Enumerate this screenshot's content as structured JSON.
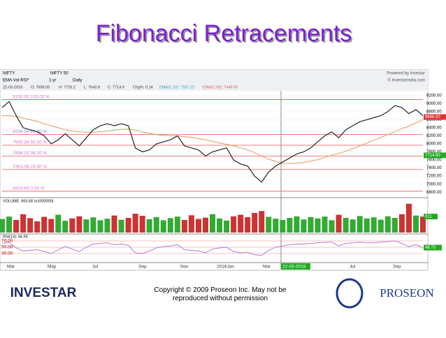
{
  "slide_title": "Fibonacci Retracements",
  "toolbar": {
    "symbol": "NIFTY",
    "index": "NIFTY 50",
    "powered": "Powered by Investar",
    "study": "EMA-Vol-RSI*",
    "period": "1-yr",
    "interval": "Daily",
    "site": "© InvestarIndia.com"
  },
  "info": [
    "22-03-2016",
    "O: 7699.55",
    "H: 7726.2",
    "L: 7643.8",
    "C: 7714.9",
    "Chg%: 0.14",
    "EMA(C,10): 7557.22",
    "EMA(C,50): 7448.55"
  ],
  "price_pane": {
    "ylim": [
      6700,
      9300
    ],
    "yticks": [
      {
        "value": 9200,
        "label": "9200.00"
      },
      {
        "value": 9000,
        "label": "9000.00"
      },
      {
        "value": 8800,
        "label": "8800.00"
      },
      {
        "value": 8600,
        "label": "8600.00"
      },
      {
        "value": 8400,
        "label": "8400.00"
      },
      {
        "value": 8200,
        "label": "8200.00"
      },
      {
        "value": 8000,
        "label": "8000.00"
      },
      {
        "value": 7800,
        "label": "7800.00"
      },
      {
        "value": 7600,
        "label": "7600.00"
      },
      {
        "value": 7400,
        "label": "7400.00"
      },
      {
        "value": 7200,
        "label": "7200.00"
      },
      {
        "value": 7000,
        "label": "7000.00"
      },
      {
        "value": 6800,
        "label": "6800.00"
      }
    ],
    "fib_levels": [
      {
        "value": 9100,
        "label": "9100.00 100.00 %"
      },
      {
        "value": 8234.54,
        "label": "8234.54 61.80 %"
      },
      {
        "value": 7965.34,
        "label": "7965.34 50.00 %"
      },
      {
        "value": 7696.15,
        "label": "7696.15 38.20 %"
      },
      {
        "value": 7363.08,
        "label": "7363.08 23.60 %"
      },
      {
        "value": 6824.69,
        "label": "6824.69 0.00 %"
      }
    ],
    "markers": [
      {
        "value": 8666,
        "label": "8666.00",
        "color": "#d33"
      },
      {
        "value": 7714.9,
        "label": "7714.90",
        "color": "#2a2"
      }
    ],
    "price": {
      "color": "#222",
      "values": [
        8900,
        9050,
        8700,
        8400,
        8350,
        8300,
        8200,
        8000,
        8100,
        8250,
        8100,
        7950,
        8150,
        8350,
        8450,
        8500,
        8450,
        8500,
        8450,
        7900,
        7800,
        7850,
        8000,
        8050,
        8100,
        8200,
        7950,
        7900,
        7850,
        7700,
        7800,
        7850,
        7900,
        7600,
        7500,
        7450,
        7200,
        7050,
        7300,
        7450,
        7550,
        7650,
        7750,
        7800,
        7900,
        8050,
        8200,
        8300,
        8150,
        8350,
        8450,
        8550,
        8600,
        8650,
        8700,
        8800,
        8950,
        8900,
        8750,
        8850,
        8700
      ]
    },
    "ema": {
      "color": "#e8965a",
      "values": [
        8700,
        8700,
        8680,
        8640,
        8600,
        8560,
        8500,
        8450,
        8400,
        8350,
        8320,
        8300,
        8290,
        8290,
        8300,
        8320,
        8340,
        8360,
        8370,
        8340,
        8300,
        8260,
        8230,
        8210,
        8200,
        8200,
        8180,
        8160,
        8130,
        8100,
        8060,
        8020,
        7990,
        7950,
        7900,
        7850,
        7780,
        7700,
        7620,
        7560,
        7520,
        7510,
        7520,
        7540,
        7570,
        7610,
        7660,
        7720,
        7760,
        7820,
        7880,
        7950,
        8020,
        8090,
        8160,
        8230,
        8300,
        8380,
        8440,
        8520,
        8600
      ]
    }
  },
  "volume_pane": {
    "label": "VOLUME: 863.68 (x1000000)",
    "ylim": [
      0,
      1200
    ],
    "marker": {
      "value": 611,
      "label": "611"
    },
    "values": [
      520,
      610,
      480,
      700,
      550,
      430,
      600,
      520,
      680,
      450,
      540,
      620,
      500,
      580,
      470,
      530,
      650,
      490,
      560,
      720,
      640,
      510,
      590,
      470,
      550,
      610,
      480,
      660,
      520,
      570,
      700,
      540,
      460,
      620,
      680,
      590,
      750,
      820,
      600,
      530,
      480,
      560,
      620,
      500,
      590,
      540,
      610,
      470,
      680,
      560,
      500,
      630,
      540,
      580,
      490,
      620,
      560,
      700,
      1100,
      650,
      611
    ]
  },
  "rsi_pane": {
    "label": "RSI(14): 66.95",
    "ylim": [
      10,
      90
    ],
    "yticks": [
      {
        "value": 70,
        "label": "70.00"
      },
      {
        "value": 50,
        "label": "50.00"
      },
      {
        "value": 30,
        "label": "30.00"
      }
    ],
    "marker": {
      "value": 48.73,
      "label": "48.73"
    },
    "values": [
      62,
      66,
      48,
      38,
      40,
      42,
      36,
      30,
      42,
      52,
      44,
      36,
      50,
      60,
      62,
      64,
      58,
      60,
      56,
      32,
      30,
      38,
      48,
      52,
      54,
      58,
      42,
      40,
      38,
      32,
      44,
      48,
      50,
      36,
      32,
      34,
      26,
      24,
      40,
      50,
      54,
      58,
      60,
      60,
      62,
      64,
      66,
      66,
      54,
      62,
      64,
      66,
      64,
      64,
      66,
      68,
      70,
      62,
      52,
      58,
      48.73
    ]
  },
  "x_labels": [
    "Mar",
    "May",
    "Jul",
    "Sep",
    "Nov",
    "2016Jan",
    "Mar",
    "22-03-2016",
    "Jul",
    "Sep"
  ],
  "footer": {
    "logo_left": "INVESTAR",
    "copyright": "Copyright © 2009 Proseon Inc. May not be reproduced without permission",
    "logo_right": "PROSEON"
  }
}
